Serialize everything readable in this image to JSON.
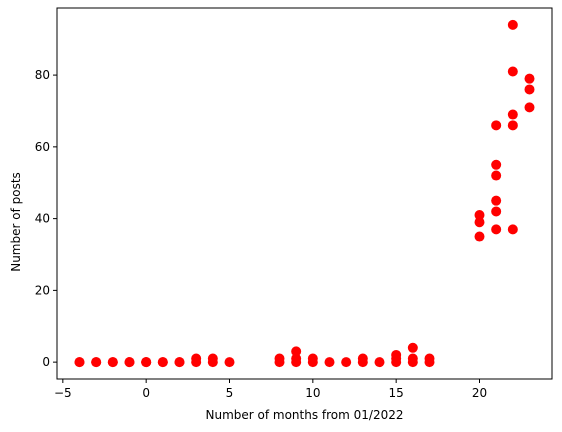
{
  "chart_data": {
    "type": "scatter",
    "title": "",
    "xlabel": "Number of months from 01/2022",
    "ylabel": "Number of posts",
    "xlim": [
      -5.35,
      24.35
    ],
    "ylim": [
      -4.7,
      98.7
    ],
    "xticks": [
      -5,
      0,
      5,
      10,
      15,
      20
    ],
    "yticks": [
      0,
      20,
      40,
      60,
      80
    ],
    "grid": false,
    "legend": "none",
    "marker_color": "#ff0000",
    "series": [
      {
        "points": [
          [
            -4,
            0
          ],
          [
            -4,
            0
          ],
          [
            -3,
            0
          ],
          [
            -3,
            0
          ],
          [
            -2,
            0
          ],
          [
            -2,
            0
          ],
          [
            -1,
            0
          ],
          [
            -1,
            0
          ],
          [
            0,
            0
          ],
          [
            0,
            0
          ],
          [
            0,
            0
          ],
          [
            1,
            0
          ],
          [
            1,
            0
          ],
          [
            2,
            0
          ],
          [
            2,
            0
          ],
          [
            3,
            0
          ],
          [
            3,
            1
          ],
          [
            4,
            0
          ],
          [
            4,
            1
          ],
          [
            5,
            0
          ],
          [
            8,
            0
          ],
          [
            8,
            1
          ],
          [
            9,
            0
          ],
          [
            9,
            1
          ],
          [
            9,
            3
          ],
          [
            10,
            0
          ],
          [
            10,
            1
          ],
          [
            11,
            0
          ],
          [
            12,
            0
          ],
          [
            13,
            0
          ],
          [
            13,
            1
          ],
          [
            14,
            0
          ],
          [
            15,
            0
          ],
          [
            15,
            1
          ],
          [
            15,
            2
          ],
          [
            16,
            0
          ],
          [
            16,
            1
          ],
          [
            16,
            4
          ],
          [
            17,
            0
          ],
          [
            17,
            1
          ],
          [
            20,
            35
          ],
          [
            20,
            39
          ],
          [
            20,
            41
          ],
          [
            21,
            37
          ],
          [
            21,
            42
          ],
          [
            21,
            45
          ],
          [
            21,
            52
          ],
          [
            21,
            55
          ],
          [
            21,
            66
          ],
          [
            22,
            37
          ],
          [
            22,
            66
          ],
          [
            22,
            69
          ],
          [
            22,
            81
          ],
          [
            22,
            94
          ],
          [
            23,
            71
          ],
          [
            23,
            76
          ],
          [
            23,
            79
          ]
        ]
      }
    ]
  }
}
